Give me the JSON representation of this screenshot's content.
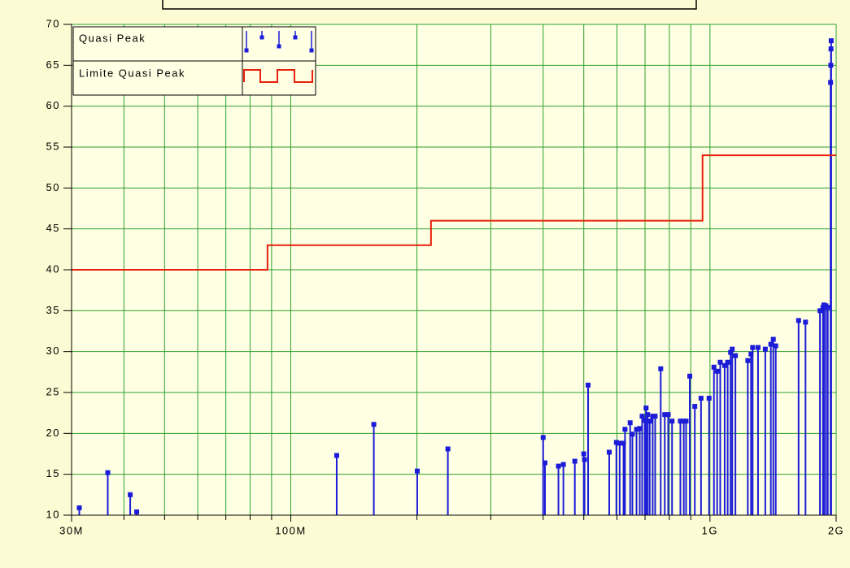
{
  "chart_data": {
    "type": "stem",
    "xscale": "log",
    "grid": true,
    "legend": "upper left",
    "xlim": [
      30000000,
      2000000000
    ],
    "ylim": [
      10,
      70
    ],
    "xticks": [
      {
        "value": 30000000,
        "label": "30M"
      },
      {
        "value": 100000000,
        "label": "100M"
      },
      {
        "value": 1000000000,
        "label": "1G"
      },
      {
        "value": 2000000000,
        "label": "2G"
      }
    ],
    "xminorticks": [
      40000000,
      50000000,
      60000000,
      70000000,
      80000000,
      90000000,
      200000000,
      300000000,
      400000000,
      500000000,
      600000000,
      700000000,
      800000000,
      900000000
    ],
    "yticks": [
      10,
      15,
      20,
      25,
      30,
      35,
      40,
      45,
      50,
      55,
      60,
      65,
      70
    ],
    "series": [
      {
        "name": "Quasi Peak",
        "color": "#1c1cd8",
        "drawstyle": "stem",
        "x": [
          31300000,
          36600000,
          41400000,
          42900000,
          128700000,
          157800000,
          200300000,
          237000000,
          400000000,
          404000000,
          435000000,
          447000000,
          476000000,
          500000000,
          502000000,
          512000000,
          575000000,
          598000000,
          609000000,
          622000000,
          627000000,
          645000000,
          653000000,
          668000000,
          680000000,
          689000000,
          699000000,
          704000000,
          710000000,
          718000000,
          730000000,
          740000000,
          763000000,
          780000000,
          795000000,
          812000000,
          850000000,
          866000000,
          877000000,
          895000000,
          920000000,
          952000000,
          995000000,
          1022000000,
          1040000000,
          1058000000,
          1084000000,
          1102000000,
          1120000000,
          1130000000,
          1150000000,
          1231000000,
          1253000000,
          1264000000,
          1302000000,
          1355000000,
          1397000000,
          1416000000,
          1435000000,
          1627000000,
          1690000000,
          1830000000,
          1860000000,
          1870000000,
          1890000000,
          1910000000,
          1940000000,
          1942000000,
          1944000000,
          1946000000
        ],
        "values": [
          10.9,
          15.2,
          12.5,
          10.4,
          17.3,
          21.1,
          15.4,
          18.1,
          19.5,
          16.4,
          16.0,
          16.2,
          16.6,
          17.5,
          16.8,
          25.9,
          17.7,
          18.9,
          18.8,
          18.8,
          20.5,
          21.3,
          19.9,
          20.5,
          20.6,
          22.1,
          21.6,
          23.1,
          22.3,
          21.5,
          22.1,
          22.1,
          27.9,
          22.3,
          22.3,
          21.5,
          21.5,
          21.5,
          21.5,
          27.0,
          23.3,
          24.3,
          24.3,
          28.1,
          27.6,
          28.7,
          28.3,
          28.7,
          29.9,
          30.3,
          29.5,
          28.9,
          29.7,
          30.5,
          30.5,
          30.3,
          30.9,
          31.5,
          30.7,
          33.8,
          33.6,
          35.0,
          35.4,
          35.7,
          35.6,
          35.4,
          62.9,
          65.0,
          67.0,
          68.0
        ]
      },
      {
        "name": "Limite Quasi Peak",
        "color": "#e8200c",
        "drawstyle": "line",
        "x": [
          30000000,
          88000000,
          88000000,
          216000000,
          216000000,
          960000000,
          960000000,
          2000000000
        ],
        "values": [
          40,
          40,
          43,
          43,
          46,
          46,
          54,
          54
        ]
      }
    ]
  }
}
